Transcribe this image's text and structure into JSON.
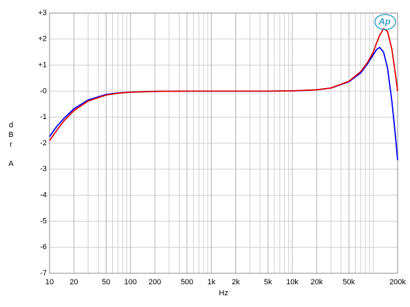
{
  "chart_data": {
    "type": "line",
    "xlabel": "Hz",
    "ylabel": "dBr A",
    "logo": "Ap",
    "log_x": true,
    "grid": true,
    "x": [
      10,
      12,
      15,
      20,
      30,
      50,
      70,
      100,
      200,
      500,
      1000,
      2000,
      5000,
      10000,
      20000,
      30000,
      50000,
      70000,
      85000,
      100000,
      110000,
      120000,
      134000,
      150000,
      170000,
      185000,
      200000
    ],
    "series": [
      {
        "color": "#0000ff",
        "values": [
          -1.75,
          -1.4,
          -1.05,
          -0.68,
          -0.34,
          -0.13,
          -0.07,
          -0.04,
          -0.01,
          0,
          0,
          0,
          0,
          0.01,
          0.05,
          0.12,
          0.36,
          0.7,
          1.05,
          1.4,
          1.6,
          1.68,
          1.5,
          0.9,
          -0.4,
          -1.5,
          -2.65
        ]
      },
      {
        "color": "#e00000",
        "values": [
          -1.9,
          -1.55,
          -1.15,
          -0.75,
          -0.38,
          -0.15,
          -0.08,
          -0.04,
          -0.01,
          0,
          0,
          0,
          0,
          0.01,
          0.05,
          0.12,
          0.38,
          0.75,
          1.1,
          1.5,
          1.85,
          2.15,
          2.4,
          2.3,
          1.6,
          0.8,
          0
        ]
      }
    ],
    "xlim": [
      10,
      200000
    ],
    "xticks": [
      10,
      20,
      50,
      100,
      200,
      500,
      {
        "value": 1000,
        "label": "1k"
      },
      {
        "value": 2000,
        "label": "2k"
      },
      {
        "value": 5000,
        "label": "5k"
      },
      {
        "value": 10000,
        "label": "10k"
      },
      {
        "value": 20000,
        "label": "20k"
      },
      {
        "value": 50000,
        "label": "50k"
      },
      {
        "value": 200000,
        "label": "200k"
      }
    ],
    "ylim": [
      -7,
      3
    ],
    "yticks": [
      {
        "value": 3,
        "label": "+3"
      },
      {
        "value": 2,
        "label": "+2"
      },
      {
        "value": 1,
        "label": "+1"
      },
      {
        "value": 0,
        "label": "-0"
      },
      -1,
      -2,
      -3,
      -4,
      -5,
      -6,
      -7
    ]
  }
}
